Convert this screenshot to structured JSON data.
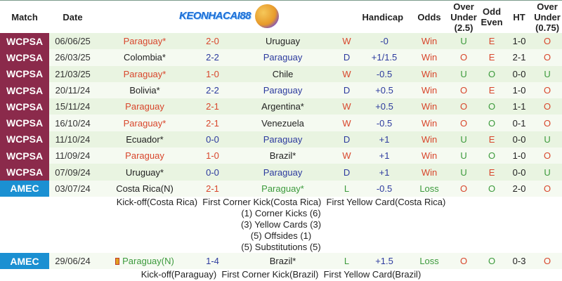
{
  "header": {
    "match": "Match",
    "date": "Date",
    "logo_text": "KEONHACAI88",
    "handicap": "Handicap",
    "odds": "Odds",
    "ou25": [
      "Over",
      "Under",
      "(2.5)"
    ],
    "oddeven": [
      "Odd",
      "Even"
    ],
    "ht": "HT",
    "ou075": [
      "Over",
      "Under",
      "(0.75)"
    ]
  },
  "colors": {
    "red": "#d8462c",
    "blue": "#2c3a9e",
    "green": "#3c9a3c",
    "wcpsa": "#8b2a4b",
    "amec": "#1b90d2"
  },
  "rows": [
    {
      "comp": "WCPSA",
      "date": "06/06/25",
      "home": "Paraguay*",
      "home_c": "red",
      "score": "2-0",
      "score_c": "red",
      "away": "Uruguay",
      "away_c": "dark",
      "res": "W",
      "res_c": "red",
      "hcp": "-0",
      "odds": "Win",
      "odds_c": "red",
      "ou": "U",
      "ou_c": "green",
      "oe": "E",
      "oe_c": "red",
      "ht": "1-0",
      "ou2": "O",
      "ou2_c": "red"
    },
    {
      "comp": "WCPSA",
      "date": "26/03/25",
      "home": "Colombia*",
      "home_c": "dark",
      "score": "2-2",
      "score_c": "blue",
      "away": "Paraguay",
      "away_c": "blue",
      "res": "D",
      "res_c": "blue",
      "hcp": "+1/1.5",
      "odds": "Win",
      "odds_c": "red",
      "ou": "O",
      "ou_c": "red",
      "oe": "E",
      "oe_c": "red",
      "ht": "2-1",
      "ou2": "O",
      "ou2_c": "red"
    },
    {
      "comp": "WCPSA",
      "date": "21/03/25",
      "home": "Paraguay*",
      "home_c": "red",
      "score": "1-0",
      "score_c": "red",
      "away": "Chile",
      "away_c": "dark",
      "res": "W",
      "res_c": "red",
      "hcp": "-0.5",
      "odds": "Win",
      "odds_c": "red",
      "ou": "U",
      "ou_c": "green",
      "oe": "O",
      "oe_c": "green",
      "ht": "0-0",
      "ou2": "U",
      "ou2_c": "green"
    },
    {
      "comp": "WCPSA",
      "date": "20/11/24",
      "home": "Bolivia*",
      "home_c": "dark",
      "score": "2-2",
      "score_c": "blue",
      "away": "Paraguay",
      "away_c": "blue",
      "res": "D",
      "res_c": "blue",
      "hcp": "+0.5",
      "odds": "Win",
      "odds_c": "red",
      "ou": "O",
      "ou_c": "red",
      "oe": "E",
      "oe_c": "red",
      "ht": "1-0",
      "ou2": "O",
      "ou2_c": "red"
    },
    {
      "comp": "WCPSA",
      "date": "15/11/24",
      "home": "Paraguay",
      "home_c": "red",
      "score": "2-1",
      "score_c": "red",
      "away": "Argentina*",
      "away_c": "dark",
      "res": "W",
      "res_c": "red",
      "hcp": "+0.5",
      "odds": "Win",
      "odds_c": "red",
      "ou": "O",
      "ou_c": "red",
      "oe": "O",
      "oe_c": "green",
      "ht": "1-1",
      "ou2": "O",
      "ou2_c": "red"
    },
    {
      "comp": "WCPSA",
      "date": "16/10/24",
      "home": "Paraguay*",
      "home_c": "red",
      "score": "2-1",
      "score_c": "red",
      "away": "Venezuela",
      "away_c": "dark",
      "res": "W",
      "res_c": "red",
      "hcp": "-0.5",
      "odds": "Win",
      "odds_c": "red",
      "ou": "O",
      "ou_c": "red",
      "oe": "O",
      "oe_c": "green",
      "ht": "0-1",
      "ou2": "O",
      "ou2_c": "red"
    },
    {
      "comp": "WCPSA",
      "date": "11/10/24",
      "home": "Ecuador*",
      "home_c": "dark",
      "score": "0-0",
      "score_c": "blue",
      "away": "Paraguay",
      "away_c": "blue",
      "res": "D",
      "res_c": "blue",
      "hcp": "+1",
      "odds": "Win",
      "odds_c": "red",
      "ou": "U",
      "ou_c": "green",
      "oe": "E",
      "oe_c": "red",
      "ht": "0-0",
      "ou2": "U",
      "ou2_c": "green"
    },
    {
      "comp": "WCPSA",
      "date": "11/09/24",
      "home": "Paraguay",
      "home_c": "red",
      "score": "1-0",
      "score_c": "red",
      "away": "Brazil*",
      "away_c": "dark",
      "res": "W",
      "res_c": "red",
      "hcp": "+1",
      "odds": "Win",
      "odds_c": "red",
      "ou": "U",
      "ou_c": "green",
      "oe": "O",
      "oe_c": "green",
      "ht": "1-0",
      "ou2": "O",
      "ou2_c": "red"
    },
    {
      "comp": "WCPSA",
      "date": "07/09/24",
      "home": "Uruguay*",
      "home_c": "dark",
      "score": "0-0",
      "score_c": "blue",
      "away": "Paraguay",
      "away_c": "blue",
      "res": "D",
      "res_c": "blue",
      "hcp": "+1",
      "odds": "Win",
      "odds_c": "red",
      "ou": "U",
      "ou_c": "green",
      "oe": "E",
      "oe_c": "red",
      "ht": "0-0",
      "ou2": "U",
      "ou2_c": "green"
    },
    {
      "comp": "AMEC",
      "date": "03/07/24",
      "home": "Costa Rica(N)",
      "home_c": "dark",
      "score": "2-1",
      "score_c": "red",
      "away": "Paraguay*",
      "away_c": "green",
      "res": "L",
      "res_c": "green",
      "hcp": "-0.5",
      "odds": "Loss",
      "odds_c": "green",
      "ou": "O",
      "ou_c": "red",
      "oe": "O",
      "oe_c": "green",
      "ht": "2-0",
      "ou2": "O",
      "ou2_c": "red",
      "details": [
        "Kick-off(Costa Rica)  First Corner Kick(Costa Rica)  First Yellow Card(Costa Rica)",
        "(1) Corner Kicks (6)",
        "(3) Yellow Cards (3)",
        "(5) Offsides (1)",
        "(5) Substitutions (5)"
      ]
    },
    {
      "comp": "AMEC",
      "date": "29/06/24",
      "home": "Paraguay(N)",
      "home_c": "green",
      "home_card": true,
      "score": "1-4",
      "score_c": "blue",
      "away": "Brazil*",
      "away_c": "dark",
      "res": "L",
      "res_c": "green",
      "hcp": "+1.5",
      "odds": "Loss",
      "odds_c": "green",
      "ou": "O",
      "ou_c": "red",
      "oe": "O",
      "oe_c": "green",
      "ht": "0-3",
      "ou2": "O",
      "ou2_c": "red",
      "details": [
        "Kick-off(Paraguay)  First Corner Kick(Brazil)  First Yellow Card(Brazil)"
      ]
    }
  ]
}
